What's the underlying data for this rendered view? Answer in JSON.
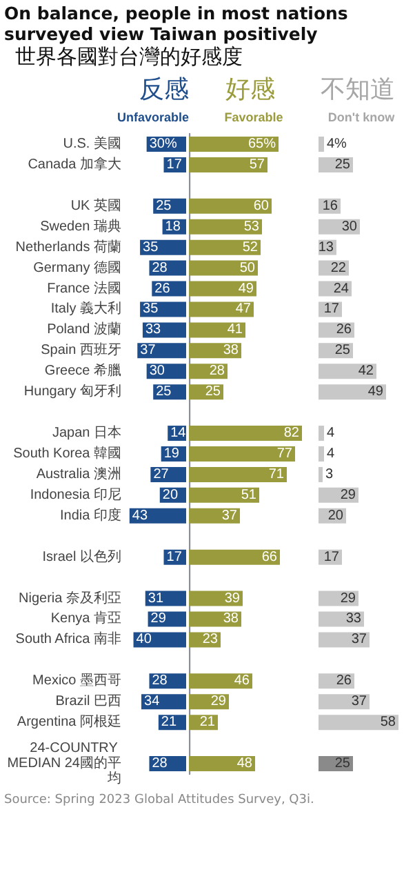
{
  "chart_data": [
    {
      "type": "bar",
      "orientation": "horizontal",
      "title": "On balance, people in most nations surveyed view Taiwan positively",
      "subtitle": "世界各國對台灣的好感度",
      "annotations": [
        "Source: Spring 2023 Global Attitudes Survey, Q3i."
      ],
      "legend": "top",
      "legend_title": "反感",
      "tick_labels": "y",
      "xlim": [
        45,
        0
      ],
      "categories": [
        "U.S. 美國",
        "Canada 加拿大",
        null,
        "UK 英國",
        "Sweden 瑞典",
        "Netherlands 荷蘭",
        "Germany 德國",
        "France 法國",
        "Italy 義大利",
        "Poland 波蘭",
        "Spain 西班牙",
        "Greece 希臘",
        "Hungary 匈牙利",
        null,
        "Japan 日本",
        "South Korea 韓國",
        "Australia 澳洲",
        "Indonesia 印尼",
        "India 印度",
        null,
        "Israel 以色列",
        null,
        "Nigeria 奈及利亞",
        "Kenya 肯亞",
        "South Africa 南非",
        null,
        "Mexico 墨西哥",
        "Brazil 巴西",
        "Argentina 阿根廷",
        null,
        "24-COUNTRY MEDIAN 24國的平均"
      ],
      "series": [
        {
          "name": "Unfavorable",
          "color": "#1f4e8c",
          "values": [
            30,
            17,
            null,
            25,
            18,
            35,
            28,
            26,
            35,
            33,
            37,
            30,
            25,
            null,
            14,
            19,
            27,
            20,
            43,
            null,
            17,
            null,
            31,
            29,
            40,
            null,
            28,
            34,
            21,
            null,
            28
          ],
          "value_labels": [
            "30%",
            "17",
            null,
            "25",
            "18",
            "35",
            "28",
            "26",
            "35",
            "33",
            "37",
            "30",
            "25",
            null,
            "14",
            "19",
            "27",
            "20",
            "43",
            null,
            "17",
            null,
            "31",
            "29",
            "40",
            null,
            "28",
            "34",
            "21",
            null,
            "28"
          ]
        }
      ]
    },
    {
      "type": "bar",
      "orientation": "horizontal",
      "legend": "top",
      "legend_title": "好感",
      "tick_labels": false,
      "xlim": [
        0,
        85
      ],
      "categories": [
        "U.S. 美國",
        "Canada 加拿大",
        null,
        "UK 英國",
        "Sweden 瑞典",
        "Netherlands 荷蘭",
        "Germany 德國",
        "France 法國",
        "Italy 義大利",
        "Poland 波蘭",
        "Spain 西班牙",
        "Greece 希臘",
        "Hungary 匈牙利",
        null,
        "Japan 日本",
        "South Korea 韓國",
        "Australia 澳洲",
        "Indonesia 印尼",
        "India 印度",
        null,
        "Israel 以色列",
        null,
        "Nigeria 奈及利亞",
        "Kenya 肯亞",
        "South Africa 南非",
        null,
        "Mexico 墨西哥",
        "Brazil 巴西",
        "Argentina 阿根廷",
        null,
        "24-COUNTRY MEDIAN 24國的平均"
      ],
      "series": [
        {
          "name": "Favorable",
          "color": "#9a9b3c",
          "values": [
            65,
            57,
            null,
            60,
            53,
            52,
            50,
            49,
            47,
            41,
            38,
            28,
            25,
            null,
            82,
            77,
            71,
            51,
            37,
            null,
            66,
            null,
            39,
            38,
            23,
            null,
            46,
            29,
            21,
            null,
            48
          ],
          "value_labels": [
            "65%",
            "57",
            null,
            "60",
            "53",
            "52",
            "50",
            "49",
            "47",
            "41",
            "38",
            "28",
            "25",
            null,
            "82",
            "77",
            "71",
            "51",
            "37",
            null,
            "66",
            null,
            "39",
            "38",
            "23",
            null,
            "46",
            "29",
            "21",
            null,
            "48"
          ]
        }
      ]
    },
    {
      "type": "bar",
      "orientation": "horizontal",
      "legend": "top",
      "legend_title": "不知道",
      "tick_labels": false,
      "xlim": [
        0,
        60
      ],
      "categories": [
        "U.S. 美國",
        "Canada 加拿大",
        null,
        "UK 英國",
        "Sweden 瑞典",
        "Netherlands 荷蘭",
        "Germany 德國",
        "France 法國",
        "Italy 義大利",
        "Poland 波蘭",
        "Spain 西班牙",
        "Greece 希臘",
        "Hungary 匈牙利",
        null,
        "Japan 日本",
        "South Korea 韓國",
        "Australia 澳洲",
        "Indonesia 印尼",
        "India 印度",
        null,
        "Israel 以色列",
        null,
        "Nigeria 奈及利亞",
        "Kenya 肯亞",
        "South Africa 南非",
        null,
        "Mexico 墨西哥",
        "Brazil 巴西",
        "Argentina 阿根廷",
        null,
        "24-COUNTRY MEDIAN 24國的平均"
      ],
      "series": [
        {
          "name": "Don't know",
          "color": "#a6a6a6",
          "colors": [
            "#c8c8c8",
            "#c8c8c8",
            null,
            "#c8c8c8",
            "#c8c8c8",
            "#c8c8c8",
            "#c8c8c8",
            "#c8c8c8",
            "#c8c8c8",
            "#c8c8c8",
            "#c8c8c8",
            "#c8c8c8",
            "#c8c8c8",
            null,
            "#c8c8c8",
            "#c8c8c8",
            "#c8c8c8",
            "#c8c8c8",
            "#c8c8c8",
            null,
            "#c8c8c8",
            null,
            "#c8c8c8",
            "#c8c8c8",
            "#c8c8c8",
            null,
            "#c8c8c8",
            "#c8c8c8",
            "#c8c8c8",
            null,
            "#8a8a8a"
          ],
          "values": [
            4,
            25,
            null,
            16,
            30,
            13,
            22,
            24,
            17,
            26,
            25,
            42,
            49,
            null,
            4,
            4,
            3,
            29,
            20,
            null,
            17,
            null,
            29,
            33,
            37,
            null,
            26,
            37,
            58,
            null,
            25
          ],
          "value_labels": [
            "4%",
            "25",
            null,
            "16",
            "30",
            "13",
            "22",
            "24",
            "17",
            "26",
            "25",
            "42",
            "49",
            null,
            "4",
            "4",
            "3",
            "29",
            "20",
            null,
            "17",
            null,
            "29",
            "33",
            "37",
            null,
            "26",
            "37",
            "58",
            null,
            "25"
          ]
        }
      ]
    }
  ]
}
